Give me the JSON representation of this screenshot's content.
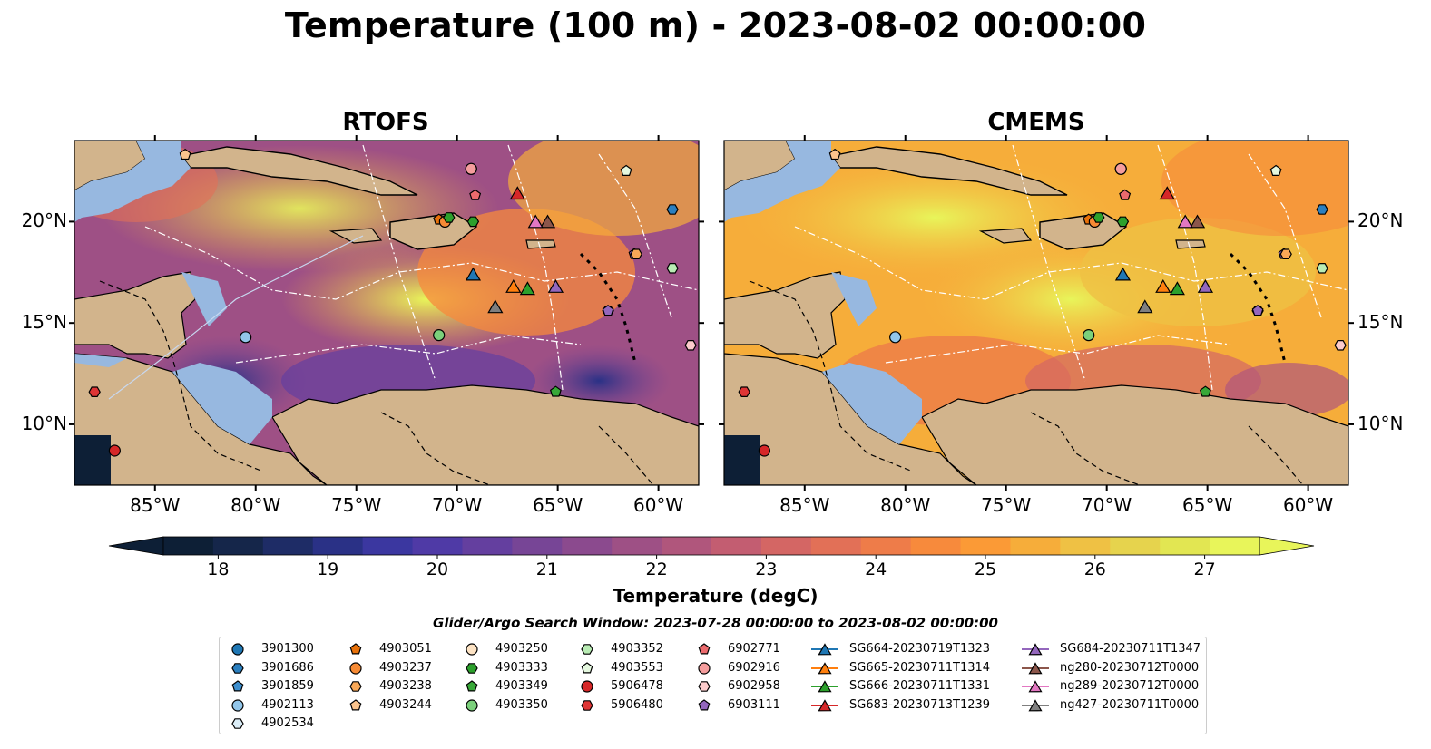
{
  "title": "Temperature (100 m) - 2023-08-02 00:00:00",
  "panels": [
    {
      "title": "RTOFS"
    },
    {
      "title": "CMEMS"
    }
  ],
  "lon_labels": [
    "85°W",
    "80°W",
    "75°W",
    "70°W",
    "65°W",
    "60°W"
  ],
  "lat_labels": [
    "20°N",
    "15°N",
    "10°N"
  ],
  "colorbar": {
    "ticks": [
      "18",
      "19",
      "20",
      "21",
      "22",
      "23",
      "24",
      "25",
      "26",
      "27"
    ],
    "label": "Temperature (degC)",
    "min": 17.5,
    "max": 27.5,
    "colors": [
      "#0d1f36",
      "#15264a",
      "#1e2c66",
      "#2a3186",
      "#3b37a0",
      "#4f3aa6",
      "#643f9f",
      "#774596",
      "#8b4a8e",
      "#9e5085",
      "#b0567c",
      "#c35d71",
      "#d46664",
      "#e27057",
      "#ee7c49",
      "#f78a3c",
      "#fb9a36",
      "#f6ad3a",
      "#efc144",
      "#e6d34d",
      "#e2e652",
      "#e8f55a"
    ],
    "extend": "both"
  },
  "legend": {
    "title": "Glider/Argo Search Window: 2023-07-28 00:00:00 to 2023-08-02 00:00:00",
    "columns": [
      [
        {
          "label": "3901300",
          "marker": "circle",
          "color": "#1f77b4"
        },
        {
          "label": "3901686",
          "marker": "hexagon",
          "color": "#2b7fbf"
        },
        {
          "label": "3901859",
          "marker": "pentagon",
          "color": "#3d8fcf"
        },
        {
          "label": "4902113",
          "marker": "circle",
          "color": "#92c6ea"
        },
        {
          "label": "4902534",
          "marker": "hexagon",
          "color": "#dceef8"
        }
      ],
      [
        {
          "label": "4903051",
          "marker": "pentagon",
          "color": "#e8710a"
        },
        {
          "label": "4903237",
          "marker": "circle",
          "color": "#f68a34"
        },
        {
          "label": "4903238",
          "marker": "hexagon",
          "color": "#f9a857"
        },
        {
          "label": "4903244",
          "marker": "pentagon",
          "color": "#fbc48d"
        }
      ],
      [
        {
          "label": "4903250",
          "marker": "circle",
          "color": "#fde3c4"
        },
        {
          "label": "4903333",
          "marker": "hexagon",
          "color": "#2ca02c"
        },
        {
          "label": "4903349",
          "marker": "pentagon",
          "color": "#38a838"
        },
        {
          "label": "4903350",
          "marker": "circle",
          "color": "#7bd07b"
        }
      ],
      [
        {
          "label": "4903352",
          "marker": "hexagon",
          "color": "#b9ecb4"
        },
        {
          "label": "4903553",
          "marker": "pentagon",
          "color": "#e5f8df"
        },
        {
          "label": "5906478",
          "marker": "circle",
          "color": "#d62728"
        },
        {
          "label": "5906480",
          "marker": "hexagon",
          "color": "#de3535"
        }
      ],
      [
        {
          "label": "6902771",
          "marker": "pentagon",
          "color": "#ec6a6d"
        },
        {
          "label": "6902916",
          "marker": "circle",
          "color": "#f59d9d"
        },
        {
          "label": "6902958",
          "marker": "hexagon",
          "color": "#fccccc"
        },
        {
          "label": "6903111",
          "marker": "pentagon",
          "color": "#9467bd"
        }
      ],
      [
        {
          "label": "SG664-20230719T1323",
          "marker": "triangle",
          "color": "#1f77b4"
        },
        {
          "label": "SG665-20230711T1314",
          "marker": "triangle",
          "color": "#ff7f0e"
        },
        {
          "label": "SG666-20230711T1331",
          "marker": "triangle",
          "color": "#2ca02c"
        },
        {
          "label": "SG683-20230713T1239",
          "marker": "triangle",
          "color": "#d62728"
        }
      ],
      [
        {
          "label": "SG684-20230711T1347",
          "marker": "triangle",
          "color": "#9467bd"
        },
        {
          "label": "ng280-20230712T0000",
          "marker": "triangle",
          "color": "#8c564b"
        },
        {
          "label": "ng289-20230712T0000",
          "marker": "triangle",
          "color": "#e377c2"
        },
        {
          "label": "ng427-20230711T0000",
          "marker": "triangle",
          "color": "#7f7f7f"
        }
      ]
    ]
  },
  "chart_data": {
    "type": "map",
    "extent": {
      "lon": [
        -89,
        -58
      ],
      "lat": [
        7,
        24
      ]
    },
    "colors": {
      "land": "#d2b48c",
      "shelf": "#97b8e0",
      "border": "#000000",
      "eez": "#ffffff"
    },
    "points": [
      {
        "id": "3901686",
        "lon": -59.3,
        "lat": 20.6
      },
      {
        "id": "4902113",
        "lon": -80.5,
        "lat": 14.3
      },
      {
        "id": "4903051",
        "lon": -70.9,
        "lat": 20.1
      },
      {
        "id": "4903237",
        "lon": -70.6,
        "lat": 20.0
      },
      {
        "id": "4903244",
        "lon": -83.5,
        "lat": 23.3
      },
      {
        "id": "4903250",
        "lon": -69.3,
        "lat": 22.6
      },
      {
        "id": "4903333",
        "lon": -70.4,
        "lat": 20.2
      },
      {
        "id": "4903350",
        "lon": -70.9,
        "lat": 14.4
      },
      {
        "id": "4903349",
        "lon": -65.1,
        "lat": 11.6
      },
      {
        "id": "4903352",
        "lon": -59.3,
        "lat": 17.7
      },
      {
        "id": "4903553",
        "lon": -61.6,
        "lat": 22.5
      },
      {
        "id": "5906478",
        "lon": -87.0,
        "lat": 8.7
      },
      {
        "id": "5906480",
        "lon": -88.0,
        "lat": 11.6
      },
      {
        "id": "6902771",
        "lon": -69.1,
        "lat": 21.3
      },
      {
        "id": "6902916",
        "lon": -69.3,
        "lat": 22.6
      },
      {
        "id": "6902958",
        "lon": -58.4,
        "lat": 13.9
      },
      {
        "id": "6903111",
        "lon": -61.2,
        "lat": 18.4
      },
      {
        "id": "4902534",
        "lon": -62.5,
        "lat": 15.6
      },
      {
        "id": "4903238",
        "lon": -61.1,
        "lat": 18.4
      },
      {
        "id": "4903333b",
        "lon": -69.2,
        "lat": 20.0
      },
      {
        "id": "6903111b",
        "lon": -62.5,
        "lat": 15.6
      }
    ],
    "gliders": [
      {
        "id": "SG664-20230719T1323",
        "lon": -69.2,
        "lat": 17.4
      },
      {
        "id": "SG665-20230711T1314",
        "lon": -67.2,
        "lat": 16.8
      },
      {
        "id": "SG666-20230711T1331",
        "lon": -66.5,
        "lat": 16.7
      },
      {
        "id": "SG683-20230713T1239",
        "lon": -67.0,
        "lat": 21.4
      },
      {
        "id": "SG684-20230711T1347",
        "lon": -65.1,
        "lat": 16.8
      },
      {
        "id": "ng280-20230712T0000",
        "lon": -65.5,
        "lat": 20.0
      },
      {
        "id": "ng289-20230712T0000",
        "lon": -66.1,
        "lat": 20.0
      },
      {
        "id": "ng427-20230711T0000",
        "lon": -68.1,
        "lat": 15.8
      }
    ]
  }
}
